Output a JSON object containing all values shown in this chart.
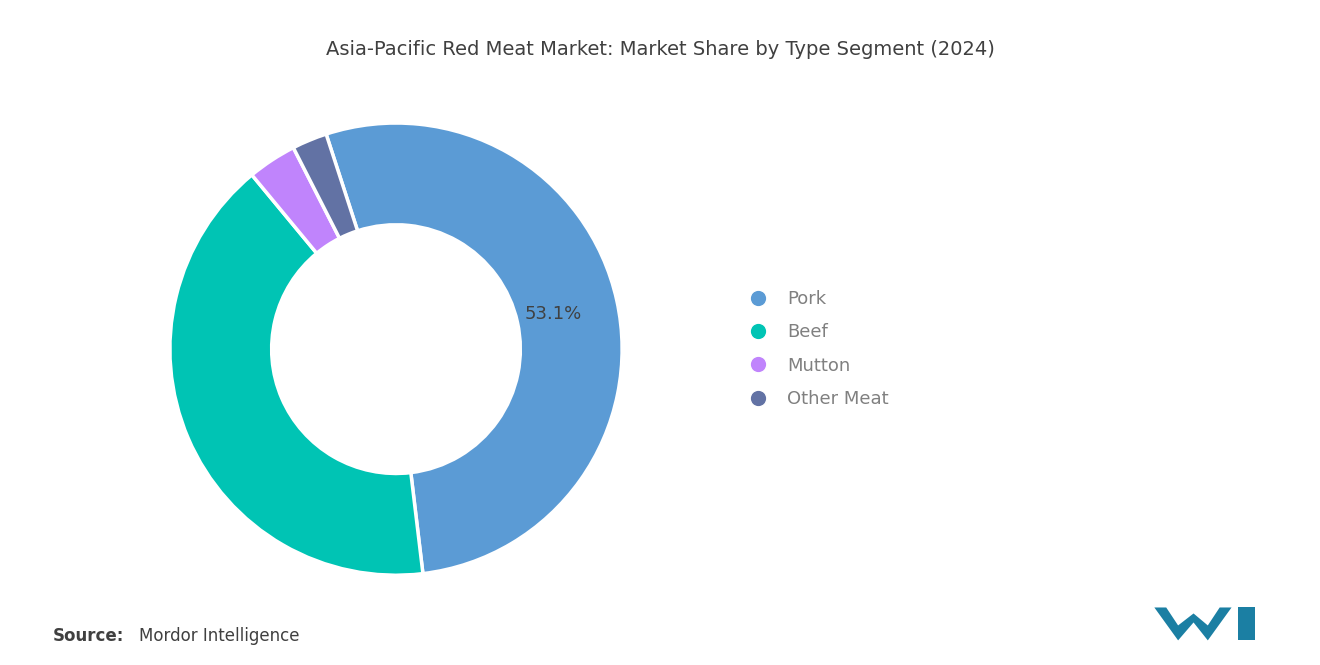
{
  "title": "Asia-Pacific Red Meat Market: Market Share by Type Segment (2024)",
  "segments": [
    "Pork",
    "Beef",
    "Mutton",
    "Other Meat"
  ],
  "values": [
    53.1,
    40.9,
    3.5,
    2.5
  ],
  "colors": [
    "#5B9BD5",
    "#00C4B4",
    "#C084FC",
    "#6272A4"
  ],
  "label_text": "53.1%",
  "source_bold": "Source:",
  "source_text": "Mordor Intelligence",
  "background_color": "#FFFFFF",
  "title_color": "#404040",
  "legend_text_color": "#808080",
  "source_text_color": "#404040",
  "wedge_linewidth": 2.5,
  "wedge_edgecolor": "#FFFFFF",
  "donut_hole_ratio": 0.55,
  "title_fontsize": 14,
  "legend_fontsize": 13,
  "label_fontsize": 13,
  "source_fontsize": 12,
  "start_angle": 108
}
